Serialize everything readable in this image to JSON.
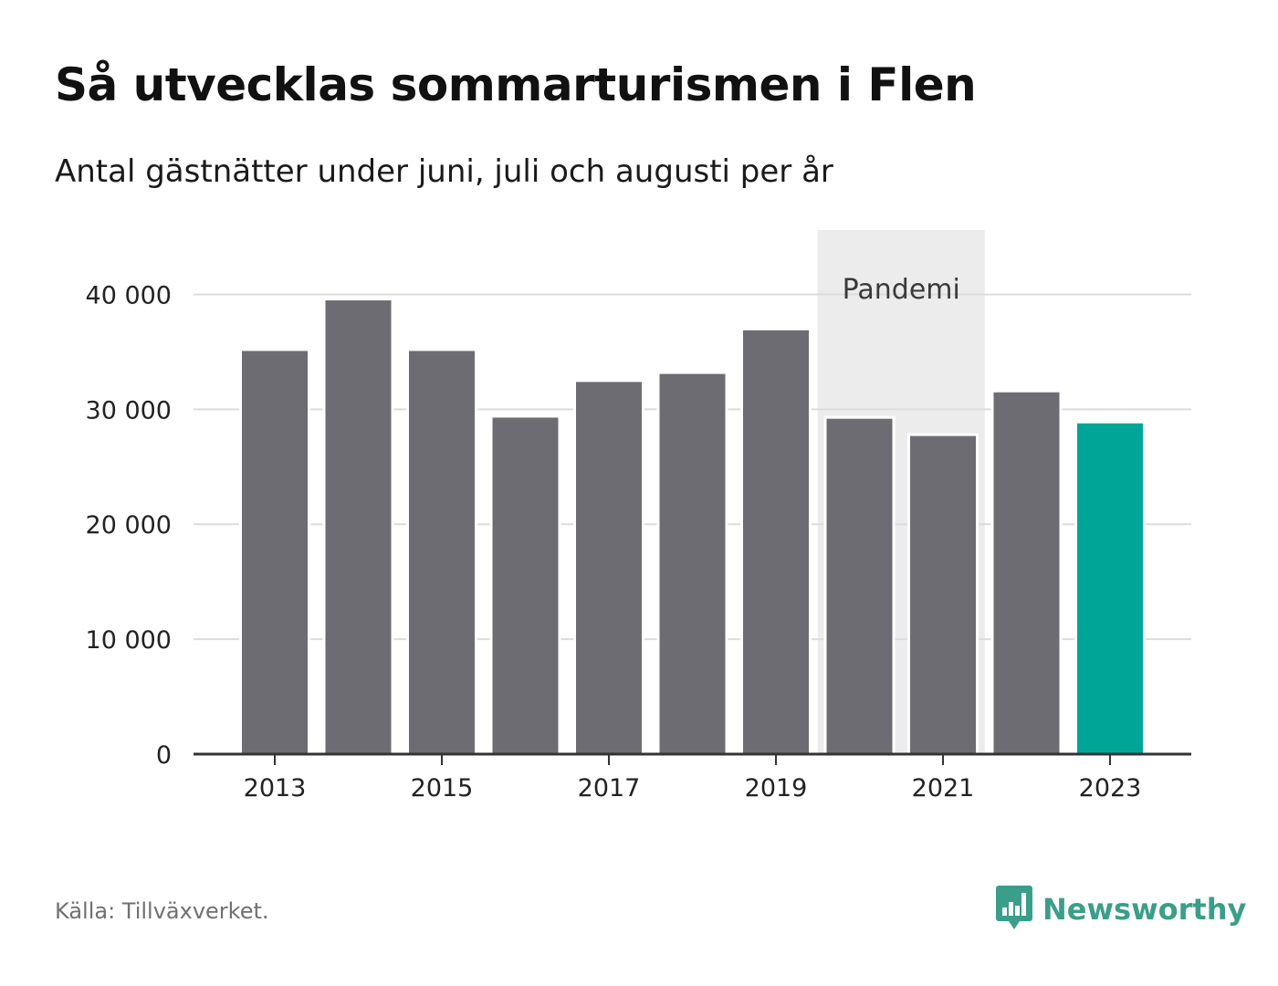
{
  "title": "Så utvecklas sommarturismen i Flen",
  "subtitle": "Antal gästnätter under juni, juli och augusti per år",
  "source": "Källa: Tillväxverket.",
  "brand": {
    "name": "Newsworthy",
    "icon": "newsworthy-logo-icon"
  },
  "colors": {
    "bar": "#6d6c73",
    "highlight": "#00a598",
    "pandemic_band": "#ececec",
    "grid": "#dcdcdc",
    "axis": "#333333",
    "brand": "#3a9e8a"
  },
  "chart_data": {
    "type": "bar",
    "categories": [
      "2013",
      "2014",
      "2015",
      "2016",
      "2017",
      "2018",
      "2019",
      "2020",
      "2021",
      "2022",
      "2023"
    ],
    "values": [
      35200,
      39600,
      35200,
      29400,
      32500,
      33200,
      37000,
      29300,
      27800,
      31600,
      28900
    ],
    "highlight": "2023",
    "xticks": [
      "2013",
      "2015",
      "2017",
      "2019",
      "2021",
      "2023"
    ],
    "yticks": [
      0,
      10000,
      20000,
      30000,
      40000
    ],
    "ytick_labels": [
      "0",
      "10 000",
      "20 000",
      "30 000",
      "40 000"
    ],
    "ylim": [
      0,
      45600
    ],
    "grid": true,
    "annotation": {
      "label": "Pandemi",
      "from": "2020",
      "to": "2021"
    }
  }
}
